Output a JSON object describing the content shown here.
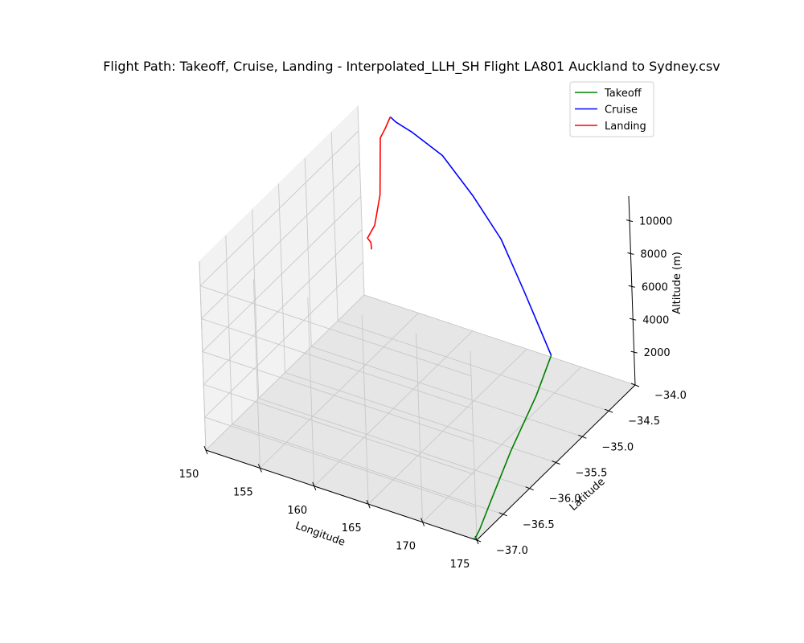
{
  "chart_data": {
    "type": "line",
    "projection": "3d",
    "title": "Flight Path: Takeoff, Cruise, Landing - Interpolated_LLH_SH Flight LA801 Auckland to Sydney.csv",
    "xlabel": "Longitude",
    "ylabel": "Latitude",
    "zlabel": "Altitude (m)",
    "xlim": [
      150,
      175
    ],
    "ylim": [
      -37.0,
      -34.0
    ],
    "zlim": [
      0,
      11500
    ],
    "xticks": [
      "150",
      "155",
      "160",
      "165",
      "170",
      "175"
    ],
    "yticks": [
      "−37.0",
      "−36.5",
      "−36.0",
      "−35.5",
      "−35.0",
      "−34.5",
      "−34.0"
    ],
    "zticks": [
      "2000",
      "4000",
      "6000",
      "8000",
      "10000"
    ],
    "grid": true,
    "legend_position": "top-right",
    "series": [
      {
        "name": "Takeoff",
        "color": "#008000",
        "points": [
          [
            174.8,
            -37.0,
            0
          ],
          [
            174.8,
            -36.9,
            300
          ],
          [
            174.9,
            -36.7,
            1400
          ],
          [
            174.9,
            -36.3,
            3200
          ],
          [
            174.9,
            -35.8,
            5000
          ],
          [
            174.9,
            -35.5,
            6500
          ]
        ]
      },
      {
        "name": "Cruise",
        "color": "#0000ff",
        "points": [
          [
            174.9,
            -35.5,
            6500
          ],
          [
            170.0,
            -35.0,
            7800
          ],
          [
            166.0,
            -34.6,
            8800
          ],
          [
            162.0,
            -34.3,
            9600
          ],
          [
            158.0,
            -34.05,
            10400
          ],
          [
            155.0,
            -34.0,
            11000
          ],
          [
            153.5,
            -34.0,
            11300
          ],
          [
            153.0,
            -34.0,
            11500
          ]
        ]
      },
      {
        "name": "Landing",
        "color": "#ff0000",
        "points": [
          [
            153.0,
            -34.0,
            11500
          ],
          [
            152.5,
            -34.0,
            10700
          ],
          [
            152.0,
            -34.0,
            10000
          ],
          [
            151.8,
            -34.0,
            6500
          ],
          [
            151.5,
            -34.0,
            5500
          ],
          [
            151.2,
            -34.0,
            4500
          ],
          [
            151.0,
            -34.1,
            4000
          ],
          [
            151.3,
            -34.1,
            3800
          ],
          [
            151.6,
            -34.15,
            3600
          ]
        ]
      }
    ]
  }
}
